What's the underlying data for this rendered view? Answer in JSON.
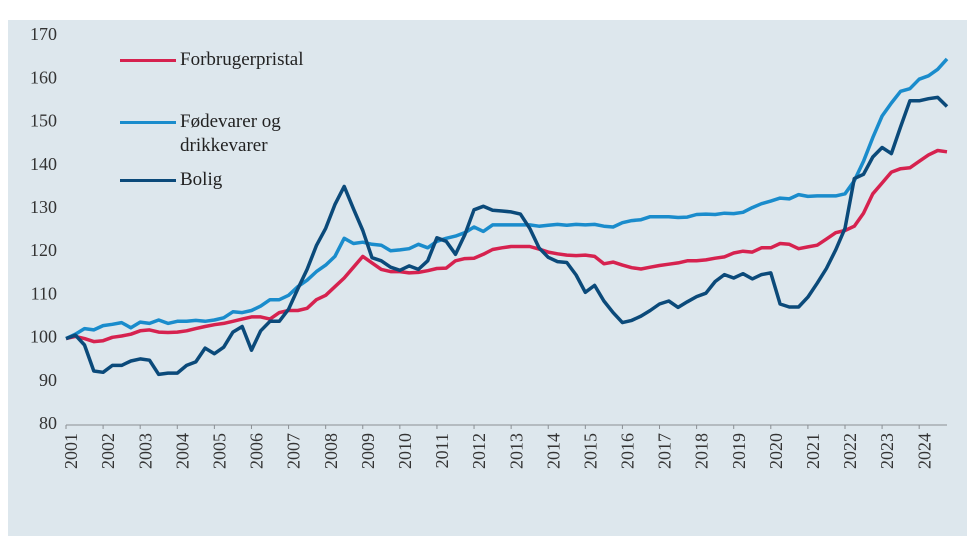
{
  "chart_data": {
    "type": "line",
    "x": [
      2001,
      2001.25,
      2001.5,
      2001.75,
      2002,
      2002.25,
      2002.5,
      2002.75,
      2003,
      2003.25,
      2003.5,
      2003.75,
      2004,
      2004.25,
      2004.5,
      2004.75,
      2005,
      2005.25,
      2005.5,
      2005.75,
      2006,
      2006.25,
      2006.5,
      2006.75,
      2007,
      2007.25,
      2007.5,
      2007.75,
      2008,
      2008.25,
      2008.5,
      2008.75,
      2009,
      2009.25,
      2009.5,
      2009.75,
      2010,
      2010.25,
      2010.5,
      2010.75,
      2011,
      2011.25,
      2011.5,
      2011.75,
      2012,
      2012.25,
      2012.5,
      2012.75,
      2013,
      2013.25,
      2013.5,
      2013.75,
      2014,
      2014.25,
      2014.5,
      2014.75,
      2015,
      2015.25,
      2015.5,
      2015.75,
      2016,
      2016.25,
      2016.5,
      2016.75,
      2017,
      2017.25,
      2017.5,
      2017.75,
      2018,
      2018.25,
      2018.5,
      2018.75,
      2019,
      2019.25,
      2019.5,
      2019.75,
      2020,
      2020.25,
      2020.5,
      2020.75,
      2021,
      2021.25,
      2021.5,
      2021.75,
      2022,
      2022.25,
      2022.5,
      2022.75,
      2023,
      2023.25,
      2023.5,
      2023.75,
      2024,
      2024.25,
      2024.5,
      2024.75
    ],
    "series": [
      {
        "name": "Forbrugerpristal",
        "color": "#d6224f",
        "values": [
          100,
          100.5,
          100,
          99.3,
          99.5,
          100.3,
          100.6,
          101,
          101.8,
          102,
          101.5,
          101.4,
          101.5,
          101.8,
          102.3,
          102.8,
          103.2,
          103.5,
          104,
          104.5,
          105,
          105,
          104.5,
          106,
          106.5,
          106.5,
          107,
          109,
          110,
          112,
          114,
          116.5,
          119,
          117.5,
          116,
          115.5,
          115.5,
          115.2,
          115.3,
          115.7,
          116.2,
          116.3,
          118,
          118.5,
          118.6,
          119.5,
          120.6,
          121,
          121.3,
          121.3,
          121.3,
          120.7,
          120,
          119.6,
          119.3,
          119.2,
          119.3,
          119,
          117.3,
          117.7,
          117,
          116.4,
          116.1,
          116.5,
          116.9,
          117.2,
          117.5,
          118,
          118,
          118.2,
          118.6,
          118.9,
          119.8,
          120.2,
          120,
          121,
          121,
          122,
          121.8,
          120.8,
          121.2,
          121.6,
          123,
          124.5,
          125,
          126,
          129,
          133.5,
          136,
          138.5,
          139.3,
          139.5,
          141,
          142.5,
          143.5,
          143.2
        ]
      },
      {
        "name": "Fødevarer og drikkevarer",
        "color": "#1a8ccc",
        "values": [
          100,
          101,
          102.3,
          102,
          103,
          103.3,
          103.7,
          102.5,
          103.8,
          103.5,
          104.3,
          103.5,
          104,
          104,
          104.2,
          104,
          104.3,
          104.8,
          106.2,
          106,
          106.5,
          107.5,
          109,
          109,
          110,
          112,
          113.5,
          115.5,
          117,
          119,
          123.2,
          122,
          122.3,
          121.8,
          121.6,
          120.3,
          120.5,
          120.8,
          121.8,
          121,
          122.5,
          123.2,
          123.7,
          124.5,
          125.8,
          124.8,
          126.3,
          126.3,
          126.3,
          126.3,
          126.3,
          126,
          126.2,
          126.4,
          126.2,
          126.4,
          126.3,
          126.4,
          126,
          125.8,
          126.8,
          127.3,
          127.5,
          128.2,
          128.2,
          128.2,
          128,
          128.1,
          128.7,
          128.8,
          128.7,
          129,
          128.9,
          129.2,
          130.3,
          131.2,
          131.8,
          132.5,
          132.3,
          133.3,
          132.9,
          133,
          133,
          133,
          133.5,
          136.5,
          141,
          146.5,
          151.5,
          154.5,
          157.2,
          157.8,
          160,
          160.8,
          162.3,
          164.7
        ]
      },
      {
        "name": "Bolig",
        "color": "#0b4a7a",
        "values": [
          100,
          100.8,
          98.5,
          92.5,
          92.2,
          93.8,
          93.8,
          94.8,
          95.3,
          95,
          91.7,
          92,
          92,
          93.8,
          94.6,
          97.8,
          96.5,
          98,
          101.5,
          102.8,
          97.3,
          101.8,
          104,
          104,
          106.8,
          111.5,
          116,
          121.5,
          125.5,
          131,
          135.2,
          130,
          125,
          118.7,
          118,
          116.5,
          115.8,
          116.8,
          116,
          118,
          123.3,
          122.5,
          119.5,
          124,
          129.8,
          130.6,
          129.7,
          129.5,
          129.3,
          128.8,
          125.5,
          121,
          118.8,
          117.8,
          117.6,
          114.7,
          110.7,
          112.3,
          108.7,
          106,
          103.7,
          104.2,
          105.2,
          106.5,
          108,
          108.7,
          107.2,
          108.5,
          109.7,
          110.5,
          113.2,
          114.8,
          114,
          115,
          113.8,
          114.8,
          115.2,
          108,
          107.3,
          107.3,
          109.6,
          112.8,
          116.2,
          120.5,
          125.5,
          137,
          138,
          142,
          144.2,
          142.8,
          149,
          155,
          155,
          155.5,
          155.8,
          153.7
        ]
      }
    ],
    "xlim": [
      2001,
      2024.75
    ],
    "xticks": [
      2001,
      2002,
      2003,
      2004,
      2005,
      2006,
      2007,
      2008,
      2009,
      2010,
      2011,
      2012,
      2013,
      2014,
      2015,
      2016,
      2017,
      2018,
      2019,
      2020,
      2021,
      2022,
      2023,
      2024
    ],
    "ylim": [
      80,
      170
    ],
    "yticks": [
      80,
      90,
      100,
      110,
      120,
      130,
      140,
      150,
      160,
      170
    ]
  }
}
